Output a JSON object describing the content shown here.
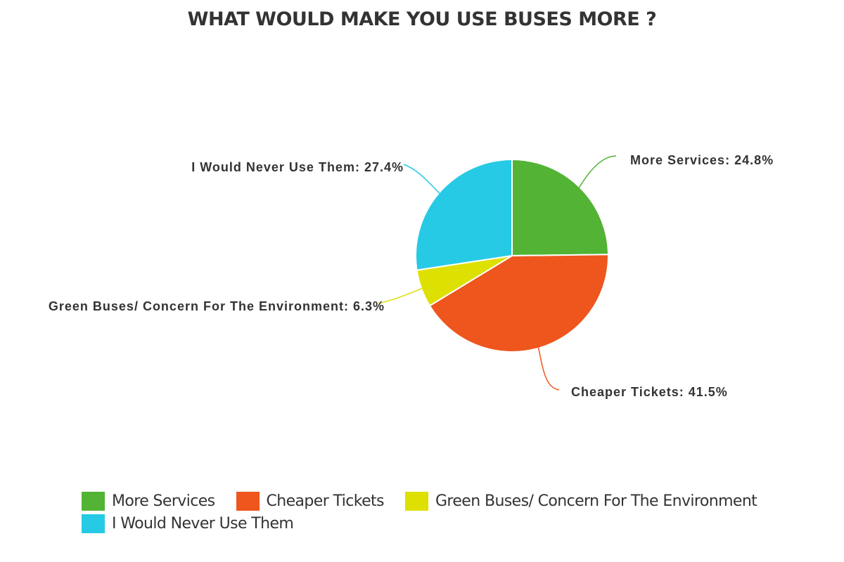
{
  "chart_data": {
    "type": "pie",
    "title": "WHAT WOULD MAKE YOU USE BUSES MORE ?",
    "series": [
      {
        "name": "More Services",
        "value": 24.8,
        "label": "More Services: 24.8%",
        "color": "#52b335"
      },
      {
        "name": "Cheaper Tickets",
        "value": 41.5,
        "label": "Cheaper Tickets: 41.5%",
        "color": "#ee561d"
      },
      {
        "name": "Green Buses/ Concern For The Environment",
        "value": 6.3,
        "label": "Green Buses/ Concern For The Environment: 6.3%",
        "color": "#dde000"
      },
      {
        "name": "I Would Never Use Them",
        "value": 27.4,
        "label": "I Would Never Use Them: 27.4%",
        "color": "#27cae5"
      }
    ],
    "start_angle": "12 o'clock",
    "direction": "clockwise",
    "legend_position": "bottom"
  }
}
